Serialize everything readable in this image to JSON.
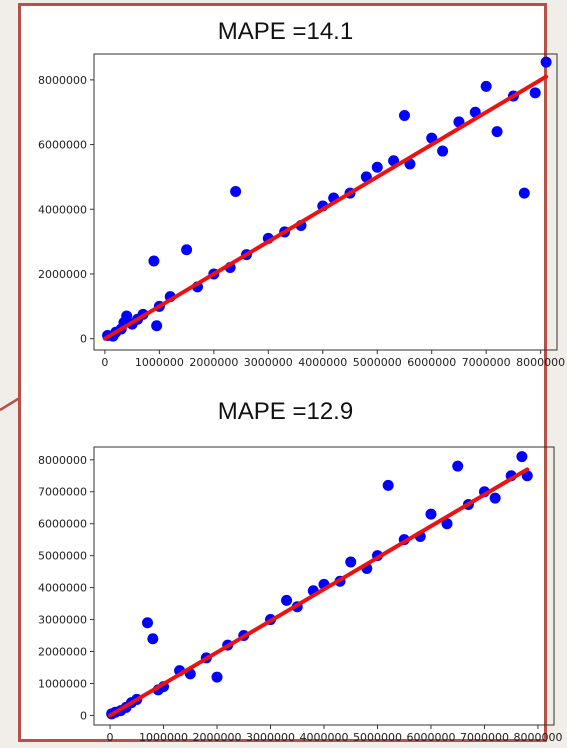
{
  "chart_data": [
    {
      "type": "scatter",
      "title": "MAPE =14.1",
      "xlabel": "",
      "ylabel": "",
      "xlim": [
        -200000,
        8300000
      ],
      "ylim": [
        -350000,
        8800000
      ],
      "xticks": [
        0,
        1000000,
        2000000,
        3000000,
        4000000,
        5000000,
        6000000,
        7000000,
        8000000
      ],
      "xtick_labels": [
        "0",
        "1000000",
        "2000000",
        "3000000",
        "4000000",
        "5000000",
        "6000000",
        "7000000",
        "8000000"
      ],
      "yticks": [
        0,
        2000000,
        4000000,
        6000000,
        8000000
      ],
      "ytick_labels": [
        "0",
        "2000000",
        "4000000",
        "6000000",
        "8000000"
      ],
      "grid": false,
      "point_color": "#0000ff",
      "line_color": "#ee1111",
      "fit_line": {
        "x": [
          0,
          8100000
        ],
        "y": [
          0,
          8100000
        ]
      },
      "points": [
        [
          50000,
          100000
        ],
        [
          150000,
          80000
        ],
        [
          200000,
          200000
        ],
        [
          300000,
          300000
        ],
        [
          350000,
          500000
        ],
        [
          400000,
          700000
        ],
        [
          500000,
          450000
        ],
        [
          600000,
          600000
        ],
        [
          700000,
          750000
        ],
        [
          900000,
          2400000
        ],
        [
          950000,
          400000
        ],
        [
          1000000,
          1000000
        ],
        [
          1200000,
          1300000
        ],
        [
          1500000,
          2750000
        ],
        [
          1700000,
          1600000
        ],
        [
          2000000,
          2000000
        ],
        [
          2300000,
          2200000
        ],
        [
          2400000,
          4550000
        ],
        [
          2600000,
          2600000
        ],
        [
          3000000,
          3100000
        ],
        [
          3300000,
          3300000
        ],
        [
          3600000,
          3500000
        ],
        [
          4000000,
          4100000
        ],
        [
          4200000,
          4350000
        ],
        [
          4500000,
          4500000
        ],
        [
          4800000,
          5000000
        ],
        [
          5000000,
          5300000
        ],
        [
          5300000,
          5500000
        ],
        [
          5500000,
          6900000
        ],
        [
          5600000,
          5400000
        ],
        [
          6000000,
          6200000
        ],
        [
          6200000,
          5800000
        ],
        [
          6500000,
          6700000
        ],
        [
          6800000,
          7000000
        ],
        [
          7000000,
          7800000
        ],
        [
          7200000,
          6400000
        ],
        [
          7500000,
          7500000
        ],
        [
          7700000,
          4500000
        ],
        [
          7900000,
          7600000
        ],
        [
          8100000,
          8550000
        ]
      ]
    },
    {
      "type": "scatter",
      "title": "MAPE =12.9",
      "xlabel": "",
      "ylabel": "",
      "xlim": [
        -300000,
        8300000
      ],
      "ylim": [
        -300000,
        8400000
      ],
      "xticks": [
        0,
        1000000,
        2000000,
        3000000,
        4000000,
        5000000,
        6000000,
        7000000,
        8000000
      ],
      "xtick_labels": [
        "0",
        "1000000",
        "2000000",
        "3000000",
        "4000000",
        "5000000",
        "6000000",
        "7000000",
        "8000000"
      ],
      "yticks": [
        0,
        1000000,
        2000000,
        3000000,
        4000000,
        5000000,
        6000000,
        7000000,
        8000000
      ],
      "ytick_labels": [
        "0",
        "1000000",
        "2000000",
        "3000000",
        "4000000",
        "5000000",
        "6000000",
        "7000000",
        "8000000"
      ],
      "grid": false,
      "point_color": "#0000ff",
      "line_color": "#ee1111",
      "fit_line": {
        "x": [
          0,
          7800000
        ],
        "y": [
          0,
          7700000
        ]
      },
      "points": [
        [
          30000,
          50000
        ],
        [
          100000,
          100000
        ],
        [
          200000,
          150000
        ],
        [
          300000,
          250000
        ],
        [
          400000,
          400000
        ],
        [
          500000,
          500000
        ],
        [
          700000,
          2900000
        ],
        [
          800000,
          2400000
        ],
        [
          900000,
          800000
        ],
        [
          1000000,
          900000
        ],
        [
          1300000,
          1400000
        ],
        [
          1500000,
          1300000
        ],
        [
          1800000,
          1800000
        ],
        [
          2000000,
          1200000
        ],
        [
          2200000,
          2200000
        ],
        [
          2500000,
          2500000
        ],
        [
          3000000,
          3000000
        ],
        [
          3300000,
          3600000
        ],
        [
          3500000,
          3400000
        ],
        [
          3800000,
          3900000
        ],
        [
          4000000,
          4100000
        ],
        [
          4300000,
          4200000
        ],
        [
          4500000,
          4800000
        ],
        [
          4800000,
          4600000
        ],
        [
          5000000,
          5000000
        ],
        [
          5200000,
          7200000
        ],
        [
          5500000,
          5500000
        ],
        [
          5800000,
          5600000
        ],
        [
          6000000,
          6300000
        ],
        [
          6300000,
          6000000
        ],
        [
          6500000,
          7800000
        ],
        [
          6700000,
          6600000
        ],
        [
          7000000,
          7000000
        ],
        [
          7200000,
          6800000
        ],
        [
          7500000,
          7500000
        ],
        [
          7700000,
          8100000
        ],
        [
          7800000,
          7500000
        ]
      ]
    }
  ]
}
